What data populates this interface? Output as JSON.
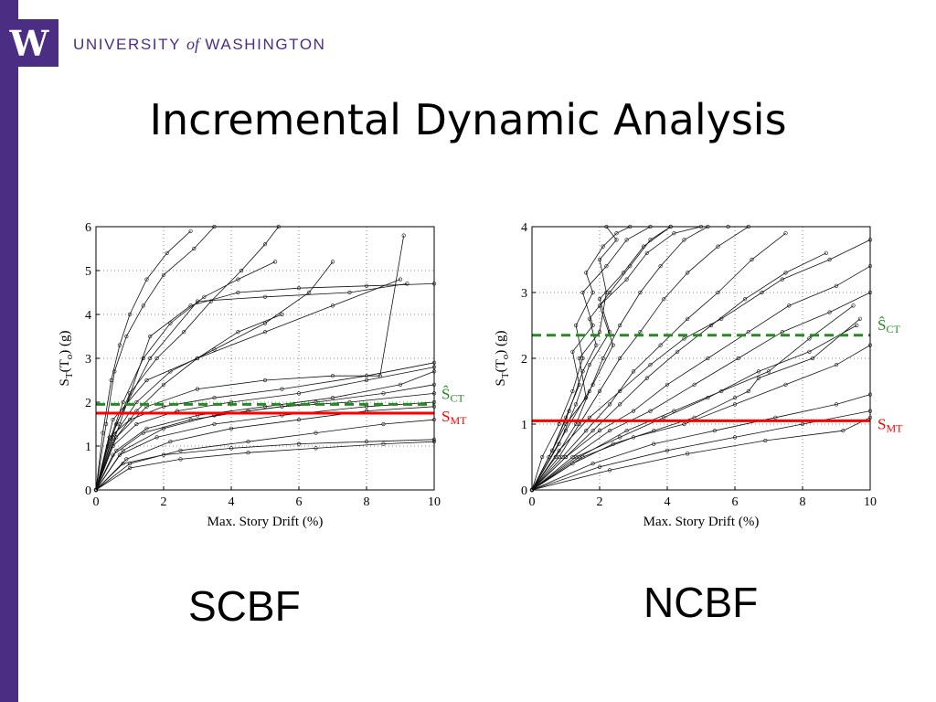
{
  "header": {
    "logo_letter": "W",
    "university_left": "UNIVERSITY",
    "university_of": "of",
    "university_right": "WASHINGTON"
  },
  "title": "Incremental Dynamic Analysis",
  "captions": {
    "left": "SCBF",
    "right": "NCBF"
  },
  "colors": {
    "purple": "#4b2e83",
    "red": "#ff0000",
    "green": "#228b22"
  },
  "chart_data": [
    {
      "type": "line",
      "xlabel": "Max. Story Drift (%)",
      "ylabel": "S_T(T_o) (g)",
      "xlim": [
        0,
        10
      ],
      "ylim": [
        0,
        6
      ],
      "xticks": [
        0,
        2,
        4,
        6,
        8,
        10
      ],
      "yticks": [
        0,
        1,
        2,
        3,
        4,
        5,
        6
      ],
      "grid": true,
      "reference_lines": [
        {
          "label": "Ŝ",
          "subscript": "CT",
          "y": 1.95,
          "style": "dashed",
          "color": "#228b22"
        },
        {
          "label": "S",
          "subscript": "MT",
          "y": 1.75,
          "style": "solid",
          "color": "#ff0000"
        }
      ],
      "series": [
        {
          "x": [
            0,
            0.2,
            0.45,
            0.7,
            1.0,
            1.5,
            2.1,
            2.8
          ],
          "y": [
            0,
            1.3,
            2.5,
            3.3,
            4.0,
            4.8,
            5.4,
            5.9
          ]
        },
        {
          "x": [
            0,
            0.3,
            0.55,
            0.9,
            1.4,
            2.0,
            2.9,
            3.5
          ],
          "y": [
            0,
            1.5,
            2.7,
            3.5,
            4.2,
            4.9,
            5.5,
            6.0
          ]
        },
        {
          "x": [
            0,
            0.35,
            0.8,
            1.4,
            2.2,
            3.2,
            4.2,
            5.3
          ],
          "y": [
            0,
            1.0,
            2.0,
            3.0,
            3.8,
            4.4,
            4.8,
            5.2
          ]
        },
        {
          "x": [
            0,
            0.4,
            1.0,
            1.8,
            2.6,
            3.4,
            4.3,
            5.0,
            5.4
          ],
          "y": [
            0,
            1.1,
            2.2,
            3.0,
            3.6,
            4.3,
            5.0,
            5.6,
            6.0
          ]
        },
        {
          "x": [
            0,
            0.5,
            1.2,
            2.0,
            3.0,
            4.2,
            5.5
          ],
          "y": [
            0,
            1.1,
            1.8,
            2.4,
            3.0,
            3.6,
            4.0
          ]
        },
        {
          "x": [
            0,
            0.5,
            1.2,
            2.2,
            3.5,
            5.0,
            6.3,
            7.0
          ],
          "y": [
            0,
            1.2,
            2.0,
            2.7,
            3.2,
            3.8,
            4.5,
            5.2
          ]
        },
        {
          "x": [
            0,
            0.6,
            1.6,
            3.0,
            5.0,
            7.5,
            9.2
          ],
          "y": [
            0,
            1.5,
            3.0,
            4.3,
            4.4,
            4.5,
            4.7
          ]
        },
        {
          "x": [
            0,
            0.7,
            1.6,
            2.8,
            4.2,
            6.0,
            8.0,
            10.0
          ],
          "y": [
            0,
            1.5,
            3.5,
            4.2,
            4.5,
            4.6,
            4.65,
            4.7
          ]
        },
        {
          "x": [
            0,
            0.5,
            1.5,
            3.0,
            5.0,
            7.0,
            9.0
          ],
          "y": [
            0,
            1.6,
            2.5,
            3.0,
            3.6,
            4.2,
            4.8
          ]
        },
        {
          "x": [
            0,
            0.6,
            1.5,
            3.0,
            5.0,
            7.0,
            8.4,
            9.1
          ],
          "y": [
            0,
            1.2,
            1.9,
            2.3,
            2.5,
            2.6,
            2.6,
            5.8
          ]
        },
        {
          "x": [
            0,
            0.4,
            1.0,
            2.0,
            3.5,
            5.5,
            8.0,
            10.0
          ],
          "y": [
            0,
            1.2,
            1.6,
            1.9,
            2.1,
            2.3,
            2.6,
            2.9
          ]
        },
        {
          "x": [
            0,
            0.5,
            1.2,
            2.4,
            4.0,
            6.0,
            8.0,
            10.0
          ],
          "y": [
            0,
            1.0,
            1.5,
            1.8,
            2.0,
            2.2,
            2.5,
            2.8
          ]
        },
        {
          "x": [
            0,
            0.6,
            1.5,
            3.0,
            5.0,
            7.0,
            9.0,
            10.0
          ],
          "y": [
            0,
            0.9,
            1.4,
            1.7,
            1.9,
            2.1,
            2.4,
            2.7
          ]
        },
        {
          "x": [
            0,
            0.5,
            1.4,
            2.8,
            4.5,
            6.5,
            8.5,
            10.0
          ],
          "y": [
            0,
            0.8,
            1.3,
            1.6,
            1.8,
            2.0,
            2.2,
            2.4
          ]
        },
        {
          "x": [
            0,
            0.8,
            2.0,
            3.5,
            5.5,
            7.5,
            10.0
          ],
          "y": [
            0,
            0.9,
            1.4,
            1.7,
            1.9,
            2.0,
            2.2
          ]
        },
        {
          "x": [
            0,
            0.7,
            1.8,
            3.5,
            5.5,
            8.0,
            10.0
          ],
          "y": [
            0,
            0.8,
            1.2,
            1.5,
            1.7,
            1.9,
            2.0
          ]
        },
        {
          "x": [
            0,
            0.9,
            2.2,
            4.0,
            6.0,
            8.0,
            10.0
          ],
          "y": [
            0,
            0.7,
            1.1,
            1.4,
            1.6,
            1.8,
            1.9
          ]
        },
        {
          "x": [
            0,
            1.0,
            2.5,
            4.5,
            6.5,
            8.5,
            10.0
          ],
          "y": [
            0,
            0.6,
            0.9,
            1.1,
            1.3,
            1.5,
            1.6
          ]
        },
        {
          "x": [
            0,
            0.8,
            2.0,
            4.0,
            6.0,
            8.0,
            10.0
          ],
          "y": [
            0,
            0.6,
            0.8,
            0.95,
            1.05,
            1.1,
            1.15
          ]
        },
        {
          "x": [
            0,
            1.0,
            2.5,
            4.5,
            6.5,
            8.5,
            10.0
          ],
          "y": [
            0,
            0.5,
            0.7,
            0.85,
            0.95,
            1.05,
            1.1
          ]
        }
      ]
    },
    {
      "type": "line",
      "xlabel": "Max. Story Drift (%)",
      "ylabel": "S_T(T_o) (g)",
      "xlim": [
        0,
        10
      ],
      "ylim": [
        0,
        4
      ],
      "xticks": [
        0,
        2,
        4,
        6,
        8,
        10
      ],
      "yticks": [
        0,
        1,
        2,
        3,
        4
      ],
      "grid": true,
      "reference_lines": [
        {
          "label": "Ŝ",
          "subscript": "CT",
          "y": 2.35,
          "style": "dashed",
          "color": "#228b22"
        },
        {
          "label": "S",
          "subscript": "MT",
          "y": 1.05,
          "style": "solid",
          "color": "#ff0000"
        }
      ],
      "series": [
        {
          "x": [
            0,
            0.3,
            0.8,
            1.2,
            1.5,
            1.3,
            1.8,
            1.6,
            2.1,
            2.5,
            2.9
          ],
          "y": [
            0,
            0.5,
            1.0,
            1.5,
            2.0,
            2.5,
            3.0,
            3.3,
            3.7,
            3.9,
            4.0
          ]
        },
        {
          "x": [
            0,
            0.5,
            1.0,
            1.6,
            1.4,
            2.0,
            2.2,
            2.0,
            2.5,
            2.2
          ],
          "y": [
            0,
            0.5,
            1.0,
            1.4,
            2.0,
            2.4,
            3.0,
            3.5,
            3.8,
            4.0
          ]
        },
        {
          "x": [
            0,
            0.6,
            1.1,
            1.5,
            1.9,
            1.7,
            2.3,
            2.9,
            3.5,
            4.1
          ],
          "y": [
            0,
            0.6,
            1.2,
            1.8,
            2.2,
            2.6,
            3.0,
            3.4,
            3.8,
            4.0
          ]
        },
        {
          "x": [
            0,
            0.7,
            1.3,
            1.7,
            2.1,
            2.6,
            3.2,
            3.8,
            4.5,
            5.2
          ],
          "y": [
            0,
            0.5,
            1.0,
            1.5,
            2.0,
            2.5,
            3.0,
            3.4,
            3.8,
            4.0
          ]
        },
        {
          "x": [
            0,
            0.8,
            1.4,
            2.0,
            2.6,
            3.2,
            3.9,
            4.6,
            5.5,
            6.4
          ],
          "y": [
            0,
            0.5,
            1.0,
            1.5,
            2.0,
            2.4,
            2.9,
            3.3,
            3.7,
            4.0
          ]
        },
        {
          "x": [
            0,
            0.9,
            1.6,
            2.3,
            3.0,
            3.8,
            4.6,
            5.5,
            6.5,
            7.5
          ],
          "y": [
            0,
            0.5,
            0.9,
            1.3,
            1.8,
            2.2,
            2.6,
            3.0,
            3.5,
            3.9
          ]
        },
        {
          "x": [
            0,
            1.0,
            1.8,
            2.6,
            3.4,
            4.3,
            5.3,
            6.3,
            7.5,
            8.7
          ],
          "y": [
            0,
            0.5,
            0.9,
            1.3,
            1.7,
            2.1,
            2.5,
            2.9,
            3.3,
            3.6
          ]
        },
        {
          "x": [
            0,
            1.0,
            2.0,
            3.0,
            4.0,
            5.2,
            6.4,
            7.6,
            9.0,
            10.0
          ],
          "y": [
            0,
            0.5,
            0.9,
            1.2,
            1.6,
            2.0,
            2.4,
            2.8,
            3.1,
            3.4
          ]
        },
        {
          "x": [
            0,
            1.2,
            2.3,
            3.5,
            4.8,
            6.1,
            7.4,
            8.8,
            10.0
          ],
          "y": [
            0,
            0.5,
            0.9,
            1.2,
            1.6,
            2.0,
            2.4,
            2.7,
            3.0
          ]
        },
        {
          "x": [
            0,
            1.3,
            2.6,
            3.9,
            5.2,
            6.7,
            8.2,
            9.6
          ],
          "y": [
            0,
            0.5,
            0.8,
            1.1,
            1.4,
            1.8,
            2.1,
            2.5
          ]
        },
        {
          "x": [
            0,
            1.5,
            3.0,
            4.5,
            6.0,
            7.5,
            9.0,
            10.0
          ],
          "y": [
            0,
            0.5,
            0.8,
            1.0,
            1.3,
            1.6,
            1.9,
            2.2
          ]
        },
        {
          "x": [
            0,
            1.2,
            2.4,
            3.6,
            4.8,
            6.0,
            6.4,
            6.7,
            8.3,
            9.7
          ],
          "y": [
            0,
            0.4,
            0.7,
            0.9,
            1.1,
            1.4,
            1.5,
            1.7,
            2.0,
            2.6
          ]
        },
        {
          "x": [
            0,
            1.8,
            3.6,
            5.4,
            7.2,
            9.0,
            10.0
          ],
          "y": [
            0,
            0.4,
            0.7,
            0.9,
            1.1,
            1.3,
            1.45
          ]
        },
        {
          "x": [
            0,
            2.0,
            4.0,
            6.0,
            8.0,
            10.0
          ],
          "y": [
            0,
            0.35,
            0.6,
            0.8,
            1.0,
            1.2
          ]
        },
        {
          "x": [
            0,
            2.3,
            4.6,
            6.9,
            9.2,
            10.0
          ],
          "y": [
            0,
            0.3,
            0.55,
            0.75,
            0.9,
            1.1
          ]
        },
        {
          "x": [
            0,
            1.0,
            1.8,
            2.4,
            2.0,
            2.8,
            3.4,
            4.2,
            5.0,
            5.8
          ],
          "y": [
            0,
            0.9,
            1.6,
            2.2,
            2.8,
            3.2,
            3.6,
            3.9,
            4.0,
            4.0
          ]
        },
        {
          "x": [
            0,
            0.8,
            1.3,
            1.7,
            2.3,
            2.0,
            2.7,
            3.3,
            4.1
          ],
          "y": [
            0,
            0.7,
            1.3,
            1.9,
            2.4,
            2.9,
            3.3,
            3.7,
            4.0
          ]
        },
        {
          "x": [
            0,
            0.6,
            1.0,
            1.4,
            1.2,
            1.8,
            1.5,
            2.2,
            2.8,
            3.5
          ],
          "y": [
            0,
            0.6,
            1.1,
            1.6,
            2.1,
            2.5,
            3.0,
            3.4,
            3.8,
            4.0
          ]
        },
        {
          "x": [
            0,
            0.8,
            1.7,
            2.6,
            3.5,
            4.5,
            5.6,
            6.8,
            7.4,
            8.8,
            10.0
          ],
          "y": [
            0,
            0.6,
            1.1,
            1.5,
            1.9,
            2.3,
            2.6,
            3.0,
            3.2,
            3.5,
            3.8
          ]
        },
        {
          "x": [
            0,
            1.4,
            2.8,
            4.2,
            5.6,
            7.0,
            8.2,
            9.5
          ],
          "y": [
            0,
            0.5,
            0.9,
            1.2,
            1.5,
            1.8,
            2.3,
            2.8
          ]
        }
      ]
    }
  ]
}
